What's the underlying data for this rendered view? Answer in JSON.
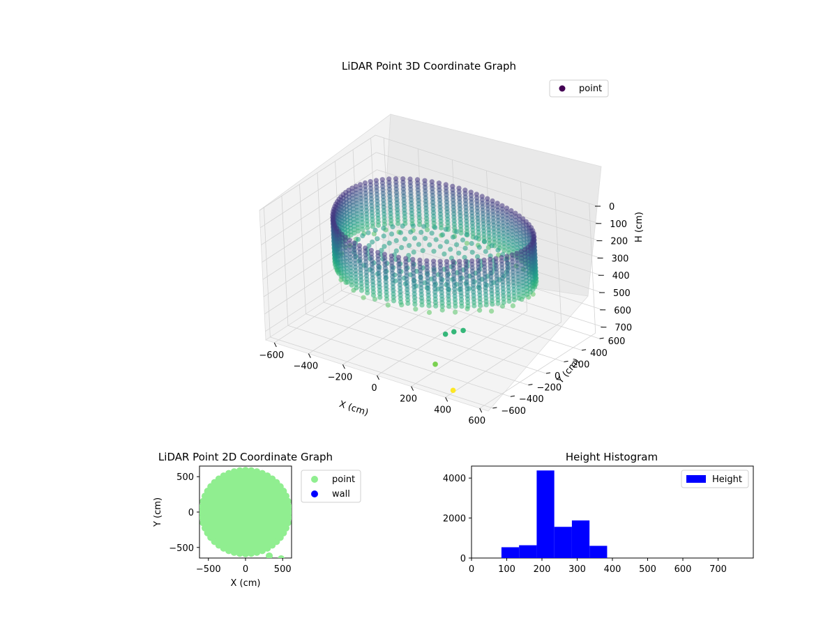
{
  "chart_data": [
    {
      "type": "scatter",
      "title": "LiDAR Point 3D Coordinate Graph",
      "xlabel": "X (cm)",
      "ylabel": "Y (cm)",
      "zlabel": "H (cm)",
      "xlim": [
        -650,
        650
      ],
      "ylim": [
        -650,
        650
      ],
      "zlim": [
        0,
        750
      ],
      "z_inverted": true,
      "xticks": [
        -600,
        -400,
        -200,
        0,
        200,
        400,
        600
      ],
      "yticks": [
        -600,
        -400,
        -200,
        0,
        200,
        400,
        600
      ],
      "zticks": [
        0,
        100,
        200,
        300,
        400,
        500,
        600,
        700
      ],
      "grid": true,
      "colormap": "viridis",
      "legend": {
        "position": "upper-right",
        "entries": [
          {
            "label": "point",
            "color": "#440154"
          }
        ]
      },
      "series": [
        {
          "name": "point",
          "shape": "cylindrical wall of points around the sensor",
          "wall_radius": 520,
          "wall_height": [
            80,
            340
          ],
          "floor_height": 300,
          "isolated_points": [
            {
              "x": 420,
              "y": -600,
              "h": 720,
              "color": "#fde725"
            },
            {
              "x": 300,
              "y": -560,
              "h": 620,
              "color": "#7ad151"
            },
            {
              "x": 360,
              "y": -450,
              "h": 450,
              "color": "#35b779"
            },
            {
              "x": 410,
              "y": -440,
              "h": 430,
              "color": "#35b779"
            },
            {
              "x": 320,
              "y": -470,
              "h": 470,
              "color": "#35b779"
            }
          ]
        }
      ]
    },
    {
      "type": "scatter",
      "title": "LiDAR Point 2D Coordinate Graph",
      "xlabel": "X (cm)",
      "ylabel": "Y (cm)",
      "xlim": [
        -620,
        620
      ],
      "ylim": [
        -650,
        650
      ],
      "xticks": [
        -500,
        0,
        500
      ],
      "yticks": [
        -500,
        0,
        500
      ],
      "legend": {
        "position": "outside-right",
        "entries": [
          {
            "label": "point",
            "color": "#90ee90"
          },
          {
            "label": "wall",
            "color": "#0000ff"
          }
        ]
      },
      "series": [
        {
          "name": "point",
          "color": "#90ee90",
          "shape": "filled disk",
          "radius": 590,
          "outliers": [
            {
              "x": 320,
              "y": -620
            },
            {
              "x": 480,
              "y": -660
            }
          ]
        },
        {
          "name": "wall",
          "color": "#0000ff",
          "values": []
        }
      ]
    },
    {
      "type": "bar",
      "title": "Height Histogram",
      "xlabel": "",
      "ylabel": "",
      "xlim": [
        0,
        800
      ],
      "ylim": [
        0,
        4600
      ],
      "xticks": [
        0,
        100,
        200,
        300,
        400,
        500,
        600,
        700
      ],
      "yticks": [
        0,
        2000,
        4000
      ],
      "legend": {
        "position": "upper-right",
        "entries": [
          {
            "label": "Height",
            "color": "#0000ff"
          }
        ]
      },
      "series": [
        {
          "name": "Height",
          "color": "#0000ff",
          "bins": [
            {
              "x0": 85,
              "x1": 135,
              "value": 540
            },
            {
              "x0": 135,
              "x1": 185,
              "value": 640
            },
            {
              "x0": 185,
              "x1": 235,
              "value": 4380
            },
            {
              "x0": 235,
              "x1": 285,
              "value": 1560
            },
            {
              "x0": 285,
              "x1": 335,
              "value": 1880
            },
            {
              "x0": 335,
              "x1": 385,
              "value": 610
            }
          ]
        }
      ]
    }
  ]
}
